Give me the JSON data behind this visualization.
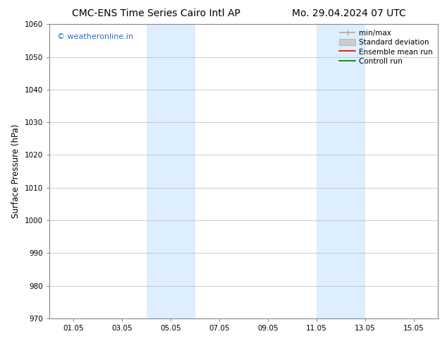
{
  "title_left": "CMC-ENS Time Series Cairo Intl AP",
  "title_right": "Mo. 29.04.2024 07 UTC",
  "ylabel": "Surface Pressure (hPa)",
  "xlabel": "",
  "ylim": [
    970,
    1060
  ],
  "yticks": [
    970,
    980,
    990,
    1000,
    1010,
    1020,
    1030,
    1040,
    1050,
    1060
  ],
  "xlim_start": 0,
  "xlim_end": 16,
  "xtick_positions": [
    1,
    3,
    5,
    7,
    9,
    11,
    13,
    15
  ],
  "xtick_labels": [
    "01.05",
    "03.05",
    "05.05",
    "07.05",
    "09.05",
    "11.05",
    "13.05",
    "15.05"
  ],
  "shaded_regions": [
    {
      "x_start": 4.0,
      "x_end": 6.0
    },
    {
      "x_start": 11.0,
      "x_end": 13.0
    }
  ],
  "shaded_color": "#ddeeff",
  "background_color": "#ffffff",
  "watermark_text": "© weatheronline.in",
  "watermark_color": "#3366cc",
  "legend_items": [
    {
      "label": "min/max",
      "color": "#aaaaaa",
      "lw": 1.2,
      "style": "solid"
    },
    {
      "label": "Standard deviation",
      "color": "#cccccc",
      "lw": 5,
      "style": "solid"
    },
    {
      "label": "Ensemble mean run",
      "color": "#dd0000",
      "lw": 1.2,
      "style": "solid"
    },
    {
      "label": "Controll run",
      "color": "#007700",
      "lw": 1.2,
      "style": "solid"
    }
  ],
  "grid_color": "#bbbbbb",
  "title_fontsize": 10,
  "axis_label_fontsize": 8.5,
  "tick_fontsize": 7.5,
  "legend_fontsize": 7.5,
  "watermark_fontsize": 8
}
